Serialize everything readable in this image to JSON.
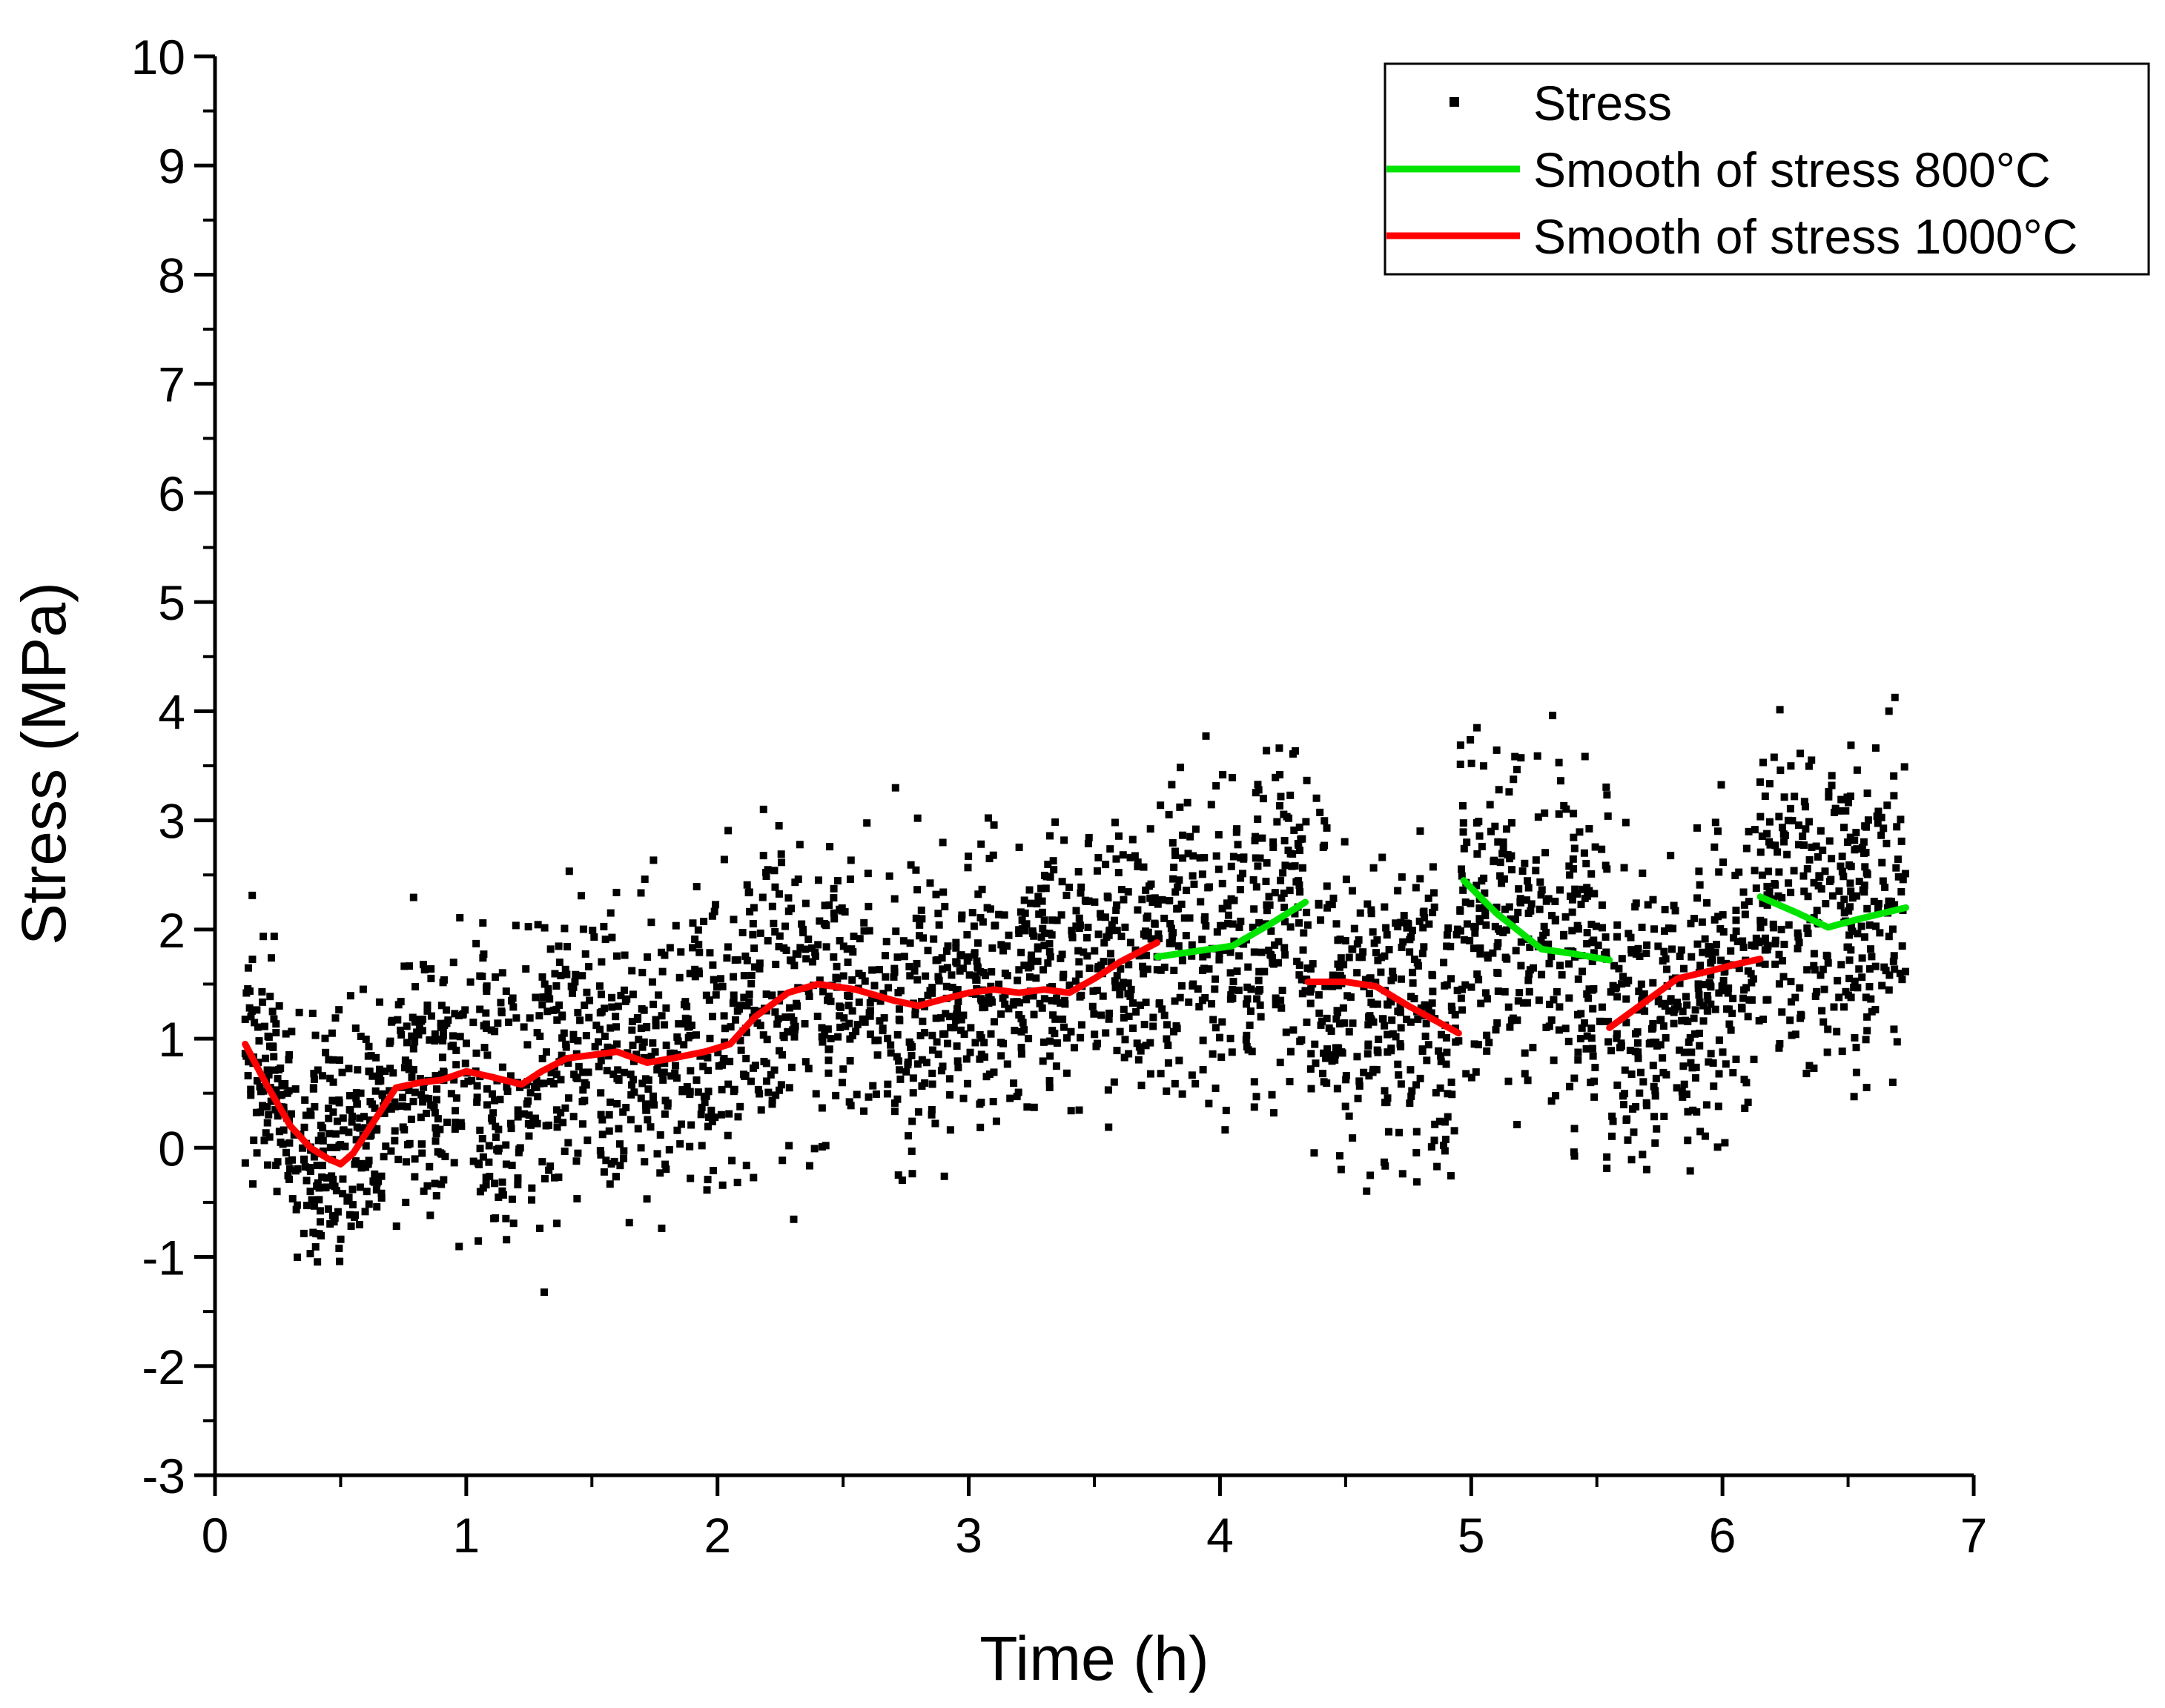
{
  "chart_data": {
    "type": "scatter",
    "title": "",
    "xlabel": "Time (h)",
    "ylabel": "Stress (MPa)",
    "xlim": [
      0,
      7
    ],
    "ylim": [
      -3,
      10
    ],
    "xticks": [
      0,
      1,
      2,
      3,
      4,
      5,
      6,
      7
    ],
    "yticks": [
      -3,
      -2,
      -1,
      0,
      1,
      2,
      3,
      4,
      5,
      6,
      7,
      8,
      9,
      10
    ],
    "grid": false,
    "legend_position": "top-right",
    "legend": [
      {
        "label": "Stress",
        "kind": "marker",
        "color": "#000000"
      },
      {
        "label": "Smooth of stress 800°C",
        "kind": "line",
        "color": "#00e400"
      },
      {
        "label": "Smooth of stress 1000°C",
        "kind": "line",
        "color": "#ff0000"
      }
    ],
    "scatter_segments": [
      {
        "t": [
          0.12,
          0.35
        ],
        "center": [
          0.9,
          0.2
        ],
        "spread": 1.2,
        "density": 120
      },
      {
        "t": [
          0.35,
          0.75
        ],
        "center": [
          -0.1,
          0.3
        ],
        "spread": 1.3,
        "density": 220
      },
      {
        "t": [
          0.75,
          1.3
        ],
        "center": [
          0.6,
          0.7
        ],
        "spread": 1.6,
        "density": 260
      },
      {
        "t": [
          1.3,
          2.1
        ],
        "center": [
          0.8,
          0.95
        ],
        "spread": 1.7,
        "density": 380
      },
      {
        "t": [
          2.1,
          3.0
        ],
        "center": [
          1.3,
          1.4
        ],
        "spread": 1.6,
        "density": 420
      },
      {
        "t": [
          3.0,
          3.75
        ],
        "center": [
          1.4,
          1.8
        ],
        "spread": 1.4,
        "density": 360
      },
      {
        "t": [
          3.75,
          4.35
        ],
        "center": [
          1.8,
          2.2
        ],
        "spread": 1.8,
        "density": 300
      },
      {
        "t": [
          4.35,
          4.95
        ],
        "center": [
          1.5,
          1.05
        ],
        "spread": 1.7,
        "density": 300
      },
      {
        "t": [
          4.95,
          5.55
        ],
        "center": [
          2.4,
          1.7
        ],
        "spread": 1.8,
        "density": 300
      },
      {
        "t": [
          5.55,
          6.15
        ],
        "center": [
          1.1,
          1.75
        ],
        "spread": 1.6,
        "density": 300
      },
      {
        "t": [
          6.15,
          6.73
        ],
        "center": [
          2.3,
          2.2
        ],
        "spread": 1.8,
        "density": 300
      }
    ],
    "series": [
      {
        "name": "Smooth of stress 1000°C",
        "color": "#ff0000",
        "x": [
          0.12,
          0.2,
          0.3,
          0.38,
          0.45,
          0.5,
          0.55,
          0.62,
          0.72,
          0.82,
          0.9,
          1.0,
          1.1,
          1.22,
          1.3,
          1.4,
          1.5,
          1.6,
          1.72,
          1.82,
          1.95,
          2.05,
          2.15,
          2.28,
          2.4,
          2.55,
          2.7,
          2.8,
          2.88,
          3.0,
          3.1,
          3.2,
          3.3,
          3.4,
          3.5,
          3.6,
          3.75
        ],
        "y": [
          0.95,
          0.6,
          0.2,
          0.0,
          -0.1,
          -0.15,
          -0.05,
          0.2,
          0.55,
          0.6,
          0.62,
          0.7,
          0.65,
          0.58,
          0.7,
          0.82,
          0.85,
          0.88,
          0.78,
          0.82,
          0.88,
          0.95,
          1.2,
          1.42,
          1.5,
          1.45,
          1.35,
          1.3,
          1.35,
          1.42,
          1.45,
          1.42,
          1.45,
          1.42,
          1.55,
          1.7,
          1.88
        ]
      },
      {
        "name": "Smooth of stress 800°C",
        "color": "#00e400",
        "x": [
          3.75,
          3.9,
          4.05,
          4.2,
          4.34
        ],
        "y": [
          1.75,
          1.8,
          1.85,
          2.05,
          2.25
        ]
      },
      {
        "name": "Smooth of stress 1000°C",
        "color": "#ff0000",
        "x": [
          4.35,
          4.5,
          4.62,
          4.75,
          4.95
        ],
        "y": [
          1.52,
          1.52,
          1.48,
          1.3,
          1.05
        ]
      },
      {
        "name": "Smooth of stress 800°C",
        "color": "#00e400",
        "x": [
          4.97,
          5.1,
          5.28,
          5.4,
          5.55
        ],
        "y": [
          2.45,
          2.15,
          1.82,
          1.78,
          1.72
        ]
      },
      {
        "name": "Smooth of stress 1000°C",
        "color": "#ff0000",
        "x": [
          5.55,
          5.7,
          5.82,
          5.95,
          6.05,
          6.15
        ],
        "y": [
          1.1,
          1.35,
          1.55,
          1.62,
          1.68,
          1.73
        ]
      },
      {
        "name": "Smooth of stress 800°C",
        "color": "#00e400",
        "x": [
          6.15,
          6.3,
          6.42,
          6.55,
          6.73
        ],
        "y": [
          2.3,
          2.15,
          2.02,
          2.1,
          2.2
        ]
      }
    ]
  }
}
